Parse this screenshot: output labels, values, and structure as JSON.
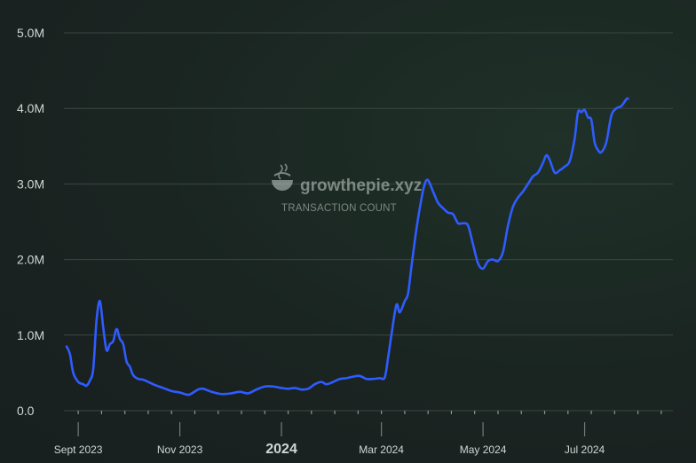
{
  "watermark": {
    "brand": "growthepie.xyz",
    "subtitle": "TRANSACTION COUNT",
    "logo_icon": "pie-logo-icon"
  },
  "colors": {
    "line": "#2f5cff",
    "grid": "#3a4743",
    "text": "#cdd8d3"
  },
  "chart_data": {
    "type": "line",
    "title": "",
    "xlabel": "",
    "ylabel": "",
    "ylim": [
      0,
      5000000
    ],
    "xlim": [
      "2023-08-25",
      "2024-08-23"
    ],
    "grid": true,
    "y_ticks": [
      {
        "value": 0,
        "label": "0.0"
      },
      {
        "value": 1000000,
        "label": "1.0M"
      },
      {
        "value": 2000000,
        "label": "2.0M"
      },
      {
        "value": 3000000,
        "label": "3.0M"
      },
      {
        "value": 4000000,
        "label": "4.0M"
      },
      {
        "value": 5000000,
        "label": "5.0M"
      }
    ],
    "x_ticks": [
      {
        "date": "2023-09-01",
        "label": "Sept 2023",
        "major": false
      },
      {
        "date": "2023-11-01",
        "label": "Nov 2023",
        "major": false
      },
      {
        "date": "2024-01-01",
        "label": "2024",
        "major": true
      },
      {
        "date": "2024-03-01",
        "label": "Mar 2024",
        "major": false
      },
      {
        "date": "2024-05-01",
        "label": "May 2024",
        "major": false
      },
      {
        "date": "2024-07-01",
        "label": "Jul 2024",
        "major": false
      }
    ],
    "series": [
      {
        "values": [
          [
            "2023-08-25",
            850000
          ],
          [
            "2023-08-27",
            750000
          ],
          [
            "2023-08-29",
            500000
          ],
          [
            "2023-09-01",
            380000
          ],
          [
            "2023-09-04",
            350000
          ],
          [
            "2023-09-06",
            330000
          ],
          [
            "2023-09-08",
            400000
          ],
          [
            "2023-09-10",
            550000
          ],
          [
            "2023-09-12",
            1200000
          ],
          [
            "2023-09-14",
            1450000
          ],
          [
            "2023-09-16",
            1100000
          ],
          [
            "2023-09-18",
            800000
          ],
          [
            "2023-09-20",
            880000
          ],
          [
            "2023-09-22",
            920000
          ],
          [
            "2023-09-24",
            1080000
          ],
          [
            "2023-09-26",
            950000
          ],
          [
            "2023-09-28",
            880000
          ],
          [
            "2023-09-30",
            650000
          ],
          [
            "2023-10-02",
            580000
          ],
          [
            "2023-10-04",
            470000
          ],
          [
            "2023-10-07",
            420000
          ],
          [
            "2023-10-10",
            410000
          ],
          [
            "2023-10-13",
            380000
          ],
          [
            "2023-10-17",
            340000
          ],
          [
            "2023-10-22",
            300000
          ],
          [
            "2023-10-27",
            260000
          ],
          [
            "2023-11-01",
            240000
          ],
          [
            "2023-11-06",
            210000
          ],
          [
            "2023-11-09",
            240000
          ],
          [
            "2023-11-12",
            280000
          ],
          [
            "2023-11-15",
            290000
          ],
          [
            "2023-11-20",
            250000
          ],
          [
            "2023-11-26",
            220000
          ],
          [
            "2023-12-02",
            230000
          ],
          [
            "2023-12-07",
            250000
          ],
          [
            "2023-12-12",
            230000
          ],
          [
            "2023-12-17",
            280000
          ],
          [
            "2023-12-22",
            320000
          ],
          [
            "2023-12-27",
            320000
          ],
          [
            "2024-01-01",
            300000
          ],
          [
            "2024-01-05",
            290000
          ],
          [
            "2024-01-09",
            300000
          ],
          [
            "2024-01-13",
            280000
          ],
          [
            "2024-01-17",
            290000
          ],
          [
            "2024-01-21",
            350000
          ],
          [
            "2024-01-25",
            380000
          ],
          [
            "2024-01-28",
            350000
          ],
          [
            "2024-02-01",
            380000
          ],
          [
            "2024-02-05",
            420000
          ],
          [
            "2024-02-09",
            430000
          ],
          [
            "2024-02-13",
            450000
          ],
          [
            "2024-02-17",
            460000
          ],
          [
            "2024-02-21",
            420000
          ],
          [
            "2024-02-25",
            420000
          ],
          [
            "2024-02-29",
            430000
          ],
          [
            "2024-03-03",
            440000
          ],
          [
            "2024-03-05",
            700000
          ],
          [
            "2024-03-07",
            1000000
          ],
          [
            "2024-03-10",
            1400000
          ],
          [
            "2024-03-12",
            1300000
          ],
          [
            "2024-03-15",
            1450000
          ],
          [
            "2024-03-17",
            1550000
          ],
          [
            "2024-03-19",
            1900000
          ],
          [
            "2024-03-22",
            2400000
          ],
          [
            "2024-03-25",
            2800000
          ],
          [
            "2024-03-27",
            3000000
          ],
          [
            "2024-03-29",
            3050000
          ],
          [
            "2024-04-01",
            2900000
          ],
          [
            "2024-04-04",
            2750000
          ],
          [
            "2024-04-07",
            2680000
          ],
          [
            "2024-04-10",
            2620000
          ],
          [
            "2024-04-13",
            2600000
          ],
          [
            "2024-04-16",
            2480000
          ],
          [
            "2024-04-19",
            2480000
          ],
          [
            "2024-04-22",
            2450000
          ],
          [
            "2024-04-25",
            2200000
          ],
          [
            "2024-04-28",
            1950000
          ],
          [
            "2024-05-01",
            1880000
          ],
          [
            "2024-05-04",
            1980000
          ],
          [
            "2024-05-07",
            2000000
          ],
          [
            "2024-05-10",
            1980000
          ],
          [
            "2024-05-13",
            2100000
          ],
          [
            "2024-05-16",
            2450000
          ],
          [
            "2024-05-19",
            2700000
          ],
          [
            "2024-05-22",
            2820000
          ],
          [
            "2024-05-25",
            2900000
          ],
          [
            "2024-05-28",
            3000000
          ],
          [
            "2024-05-31",
            3100000
          ],
          [
            "2024-06-03",
            3150000
          ],
          [
            "2024-06-06",
            3280000
          ],
          [
            "2024-06-08",
            3380000
          ],
          [
            "2024-06-10",
            3320000
          ],
          [
            "2024-06-13",
            3150000
          ],
          [
            "2024-06-16",
            3180000
          ],
          [
            "2024-06-19",
            3230000
          ],
          [
            "2024-06-22",
            3300000
          ],
          [
            "2024-06-25",
            3600000
          ],
          [
            "2024-06-27",
            3950000
          ],
          [
            "2024-06-29",
            3950000
          ],
          [
            "2024-07-01",
            3980000
          ],
          [
            "2024-07-03",
            3880000
          ],
          [
            "2024-07-05",
            3850000
          ],
          [
            "2024-07-07",
            3550000
          ],
          [
            "2024-07-09",
            3450000
          ],
          [
            "2024-07-11",
            3420000
          ],
          [
            "2024-07-14",
            3550000
          ],
          [
            "2024-07-17",
            3900000
          ],
          [
            "2024-07-20",
            4000000
          ],
          [
            "2024-07-23",
            4030000
          ],
          [
            "2024-07-26",
            4120000
          ],
          [
            "2024-07-27",
            4130000
          ]
        ]
      }
    ]
  }
}
